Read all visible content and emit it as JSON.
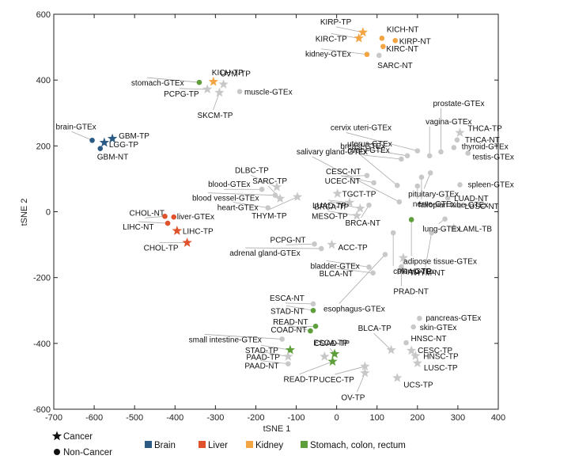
{
  "chart_data": {
    "type": "scatter",
    "xlabel": "tSNE 1",
    "ylabel": "tSNE 2",
    "xlim": [
      -700,
      400
    ],
    "ylim": [
      -600,
      600
    ],
    "xticks": [
      -700,
      -600,
      -500,
      -400,
      -300,
      -200,
      -100,
      0,
      100,
      200,
      300,
      400
    ],
    "yticks": [
      -600,
      -400,
      -200,
      0,
      200,
      400,
      600
    ],
    "colors": {
      "brain": "#2b5b84",
      "liver": "#e0522c",
      "kidney": "#f3a544",
      "stomach": "#5e9e3b",
      "other": "#c8c8c8"
    },
    "marker_legend": [
      {
        "marker": "star",
        "label": "Cancer"
      },
      {
        "marker": "circle",
        "label": "Non-Cancer"
      }
    ],
    "group_legend": [
      {
        "group": "brain",
        "label": "Brain"
      },
      {
        "group": "liver",
        "label": "Liver"
      },
      {
        "group": "kidney",
        "label": "Kidney"
      },
      {
        "group": "stomach",
        "label": "Stomach, colon, rectum"
      }
    ],
    "points": [
      {
        "label": "brain-GTEx",
        "x": -605,
        "y": 217,
        "marker": "circle",
        "group": "brain"
      },
      {
        "label": "LGG-TP",
        "x": -575,
        "y": 210,
        "marker": "star",
        "group": "brain"
      },
      {
        "label": "GBM-TP",
        "x": -555,
        "y": 222,
        "marker": "star",
        "group": "brain"
      },
      {
        "label": "GBM-NT",
        "x": -585,
        "y": 192,
        "marker": "circle",
        "group": "brain"
      },
      {
        "label": "CHOL-NT",
        "x": -425,
        "y": -14,
        "marker": "circle",
        "group": "liver"
      },
      {
        "label": "liver-GTEx",
        "x": -403,
        "y": -16,
        "marker": "circle",
        "group": "liver"
      },
      {
        "label": "LIHC-NT",
        "x": -418,
        "y": -35,
        "marker": "circle",
        "group": "liver"
      },
      {
        "label": "LIHC-TP",
        "x": -395,
        "y": -58,
        "marker": "star",
        "group": "liver"
      },
      {
        "label": "CHOL-TP",
        "x": -370,
        "y": -94,
        "marker": "star",
        "group": "liver"
      },
      {
        "label": "KIRP-TP",
        "x": 65,
        "y": 545,
        "marker": "star",
        "group": "kidney"
      },
      {
        "label": "KIRC-TP",
        "x": 55,
        "y": 527,
        "marker": "star",
        "group": "kidney"
      },
      {
        "label": "KICH-NT",
        "x": 112,
        "y": 527,
        "marker": "circle",
        "group": "kidney"
      },
      {
        "label": "KIRP-NT",
        "x": 145,
        "y": 520,
        "marker": "circle",
        "group": "kidney"
      },
      {
        "label": "KIRC-NT",
        "x": 115,
        "y": 502,
        "marker": "circle",
        "group": "kidney"
      },
      {
        "label": "kidney-GTEx",
        "x": 75,
        "y": 478,
        "marker": "circle",
        "group": "kidney"
      },
      {
        "label": "SARC-NT",
        "x": 105,
        "y": 475,
        "marker": "circle",
        "group": "other"
      },
      {
        "label": "stomach-GTEx",
        "x": -340,
        "y": 393,
        "marker": "circle",
        "group": "stomach"
      },
      {
        "label": "KICH-TP",
        "x": -305,
        "y": 395,
        "marker": "star",
        "group": "kidney"
      },
      {
        "label": "PCPG-TP",
        "x": -320,
        "y": 372,
        "marker": "star",
        "group": "other"
      },
      {
        "label": "UVM-TP",
        "x": -280,
        "y": 387,
        "marker": "star",
        "group": "other"
      },
      {
        "label": "SKCM-TP",
        "x": -290,
        "y": 362,
        "marker": "star",
        "group": "other"
      },
      {
        "label": "muscle-GTEx",
        "x": -240,
        "y": 365,
        "marker": "circle",
        "group": "other"
      },
      {
        "label": "DLBC-TP",
        "x": -148,
        "y": 75,
        "marker": "star",
        "group": "other"
      },
      {
        "label": "blood-GTEx",
        "x": -185,
        "y": 68,
        "marker": "circle",
        "group": "other"
      },
      {
        "label": "blood vessel-GTEx",
        "x": -152,
        "y": 50,
        "marker": "circle",
        "group": "other"
      },
      {
        "label": "heart-GTEx",
        "x": -170,
        "y": 12,
        "marker": "circle",
        "group": "other"
      },
      {
        "label": "SARC-TP",
        "x": -140,
        "y": 40,
        "marker": "star",
        "group": "other"
      },
      {
        "label": "THYM-TP",
        "x": -97,
        "y": 45,
        "marker": "star",
        "group": "other"
      },
      {
        "label": "CESC-NT",
        "x": 75,
        "y": 110,
        "marker": "circle",
        "group": "other"
      },
      {
        "label": "UCEC-NT",
        "x": 92,
        "y": 88,
        "marker": "circle",
        "group": "other"
      },
      {
        "label": "TGCT-TP",
        "x": 2,
        "y": 55,
        "marker": "star",
        "group": "other"
      },
      {
        "label": "LUAD-TP",
        "x": 32,
        "y": 28,
        "marker": "star",
        "group": "other"
      },
      {
        "label": "BRCA-TP",
        "x": 58,
        "y": 10,
        "marker": "star",
        "group": "other"
      },
      {
        "label": "MESO-TP",
        "x": 50,
        "y": -12,
        "marker": "star",
        "group": "other"
      },
      {
        "label": "BRCA-NT",
        "x": 80,
        "y": 20,
        "marker": "circle",
        "group": "other"
      },
      {
        "label": "PCPG-NT",
        "x": -55,
        "y": -98,
        "marker": "circle",
        "group": "other"
      },
      {
        "label": "adrenal gland-GTEx",
        "x": -38,
        "y": -112,
        "marker": "circle",
        "group": "other"
      },
      {
        "label": "ACC-TP",
        "x": -12,
        "y": -100,
        "marker": "star",
        "group": "other"
      },
      {
        "label": "salivary gland-GTEx",
        "x": 155,
        "y": 30,
        "marker": "circle",
        "group": "other"
      },
      {
        "label": "breast-GTEx",
        "x": 150,
        "y": 80,
        "marker": "circle",
        "group": "other"
      },
      {
        "label": "ovary-GTEx",
        "x": 160,
        "y": 160,
        "marker": "circle",
        "group": "other"
      },
      {
        "label": "uterus-GTEx",
        "x": 175,
        "y": 170,
        "marker": "circle",
        "group": "other"
      },
      {
        "label": "cervix uteri-GTEx",
        "x": 200,
        "y": 185,
        "marker": "circle",
        "group": "other"
      },
      {
        "label": "vagina-GTEx",
        "x": 230,
        "y": 170,
        "marker": "circle",
        "group": "other"
      },
      {
        "label": "prostate-GTEx",
        "x": 258,
        "y": 182,
        "marker": "circle",
        "group": "other"
      },
      {
        "label": "pituitary-GTEx",
        "x": 232,
        "y": 118,
        "marker": "circle",
        "group": "other"
      },
      {
        "label": "fallopian tube-GTEx",
        "x": 210,
        "y": 105,
        "marker": "circle",
        "group": "other"
      },
      {
        "label": "nerve-GTEx",
        "x": 200,
        "y": 78,
        "marker": "circle",
        "group": "other"
      },
      {
        "label": "THCA-TP",
        "x": 305,
        "y": 240,
        "marker": "star",
        "group": "other"
      },
      {
        "label": "THCA-NT",
        "x": 298,
        "y": 218,
        "marker": "circle",
        "group": "other"
      },
      {
        "label": "thyroid-GTEx",
        "x": 290,
        "y": 195,
        "marker": "circle",
        "group": "other"
      },
      {
        "label": "testis-GTEx",
        "x": 325,
        "y": 178,
        "marker": "circle",
        "group": "other"
      },
      {
        "label": "spleen-GTEx",
        "x": 305,
        "y": 82,
        "marker": "circle",
        "group": "other"
      },
      {
        "label": "LUAD-NT",
        "x": 275,
        "y": 42,
        "marker": "circle",
        "group": "other"
      },
      {
        "label": "LUSC-NT",
        "x": 305,
        "y": 18,
        "marker": "circle",
        "group": "other"
      },
      {
        "label": "lung-GTEx",
        "x": 268,
        "y": -22,
        "marker": "circle",
        "group": "other"
      },
      {
        "label": "LAML-TB",
        "x": 290,
        "y": -50,
        "marker": "star",
        "group": "other"
      },
      {
        "label": "THYM-NT",
        "x": 235,
        "y": -64,
        "marker": "circle",
        "group": "other"
      },
      {
        "label": "adipose tissue-GTEx",
        "x": 185,
        "y": -24,
        "marker": "circle",
        "group": "stomach"
      },
      {
        "label": "colon-GTEx",
        "x": 140,
        "y": -64,
        "marker": "circle",
        "group": "other"
      },
      {
        "label": "PRAD-TP",
        "x": 165,
        "y": -140,
        "marker": "star",
        "group": "other"
      },
      {
        "label": "PRAD-NT",
        "x": 160,
        "y": -168,
        "marker": "circle",
        "group": "other"
      },
      {
        "label": "esophagus-GTEx",
        "x": 120,
        "y": -130,
        "marker": "circle",
        "group": "other"
      },
      {
        "label": "bladder-GTEx",
        "x": 80,
        "y": -168,
        "marker": "circle",
        "group": "other"
      },
      {
        "label": "BLCA-NT",
        "x": 90,
        "y": -186,
        "marker": "circle",
        "group": "other"
      },
      {
        "label": "ESCA-NT",
        "x": -58,
        "y": -280,
        "marker": "circle",
        "group": "other"
      },
      {
        "label": "STAD-NT",
        "x": -58,
        "y": -300,
        "marker": "circle",
        "group": "stomach"
      },
      {
        "label": "READ-NT",
        "x": -52,
        "y": -348,
        "marker": "circle",
        "group": "stomach"
      },
      {
        "label": "COAD-NT",
        "x": -65,
        "y": -362,
        "marker": "circle",
        "group": "stomach"
      },
      {
        "label": "small intestine-GTEx",
        "x": -135,
        "y": -387,
        "marker": "circle",
        "group": "other"
      },
      {
        "label": "STAD-TP",
        "x": -115,
        "y": -420,
        "marker": "star",
        "group": "stomach"
      },
      {
        "label": "COAD-TP",
        "x": -5,
        "y": -432,
        "marker": "star",
        "group": "stomach"
      },
      {
        "label": "ESCA-TP",
        "x": -30,
        "y": -440,
        "marker": "star",
        "group": "other"
      },
      {
        "label": "READ-TP",
        "x": -10,
        "y": -455,
        "marker": "star",
        "group": "stomach"
      },
      {
        "label": "PAAD-TP",
        "x": -120,
        "y": -440,
        "marker": "star",
        "group": "other"
      },
      {
        "label": "PAAD-NT",
        "x": -120,
        "y": -462,
        "marker": "circle",
        "group": "other"
      },
      {
        "label": "BLCA-TP",
        "x": 135,
        "y": -420,
        "marker": "star",
        "group": "other"
      },
      {
        "label": "pancreas-GTEx",
        "x": 205,
        "y": -324,
        "marker": "circle",
        "group": "other"
      },
      {
        "label": "skin-GTEx",
        "x": 190,
        "y": -350,
        "marker": "circle",
        "group": "other"
      },
      {
        "label": "HNSC-NT",
        "x": 172,
        "y": -398,
        "marker": "circle",
        "group": "other"
      },
      {
        "label": "CESC-TP",
        "x": 185,
        "y": -422,
        "marker": "star",
        "group": "other"
      },
      {
        "label": "HNSC-TP",
        "x": 195,
        "y": -438,
        "marker": "star",
        "group": "other"
      },
      {
        "label": "LUSC-TP",
        "x": 200,
        "y": -460,
        "marker": "star",
        "group": "other"
      },
      {
        "label": "UCEC-TP",
        "x": 70,
        "y": -470,
        "marker": "star",
        "group": "other"
      },
      {
        "label": "OV-TP",
        "x": 70,
        "y": -490,
        "marker": "star",
        "group": "other"
      },
      {
        "label": "UCS-TP",
        "x": 150,
        "y": -505,
        "marker": "star",
        "group": "other"
      }
    ]
  }
}
